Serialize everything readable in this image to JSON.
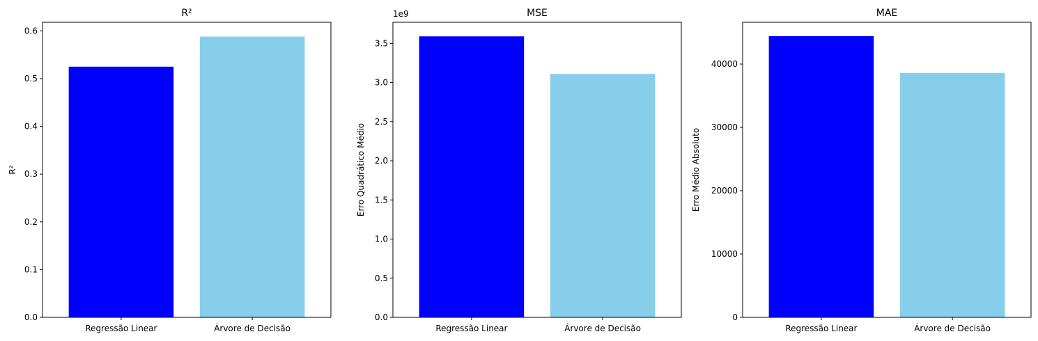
{
  "chart_data": [
    {
      "type": "bar",
      "title": "R²",
      "xlabel": "",
      "ylabel": "R²",
      "categories": [
        "Regressão Linear",
        "Árvore de Decisão"
      ],
      "values": [
        0.525,
        0.588
      ],
      "colors": [
        "#0000ff",
        "#87ceeb"
      ],
      "ylim": [
        0,
        0.618
      ],
      "yticks": [
        0,
        0.1,
        0.2,
        0.3,
        0.4,
        0.5,
        0.6
      ],
      "ytick_labels": [
        "0.0",
        "0.1",
        "0.2",
        "0.3",
        "0.4",
        "0.5",
        "0.6"
      ],
      "offset_text": "",
      "grid": false
    },
    {
      "type": "bar",
      "title": "MSE",
      "xlabel": "",
      "ylabel": "Erro Quadrático Médio",
      "categories": [
        "Regressão Linear",
        "Árvore de Decisão"
      ],
      "values": [
        3590000000.0,
        3110000000.0
      ],
      "colors": [
        "#0000ff",
        "#87ceeb"
      ],
      "ylim": [
        0,
        3770000000.0
      ],
      "yticks": [
        0,
        500000000.0,
        1000000000.0,
        1500000000.0,
        2000000000.0,
        2500000000.0,
        3000000000.0,
        3500000000.0
      ],
      "ytick_labels": [
        "0.0",
        "0.5",
        "1.0",
        "1.5",
        "2.0",
        "2.5",
        "3.0",
        "3.5"
      ],
      "offset_text": "1e9",
      "grid": false
    },
    {
      "type": "bar",
      "title": "MAE",
      "xlabel": "",
      "ylabel": "Erro Médio Absoluto",
      "categories": [
        "Regressão Linear",
        "Árvore de Decisão"
      ],
      "values": [
        44400,
        38600
      ],
      "colors": [
        "#0000ff",
        "#87ceeb"
      ],
      "ylim": [
        0,
        46600
      ],
      "yticks": [
        0,
        10000,
        20000,
        30000,
        40000
      ],
      "ytick_labels": [
        "0",
        "10000",
        "20000",
        "30000",
        "40000"
      ],
      "offset_text": "",
      "grid": false
    }
  ]
}
